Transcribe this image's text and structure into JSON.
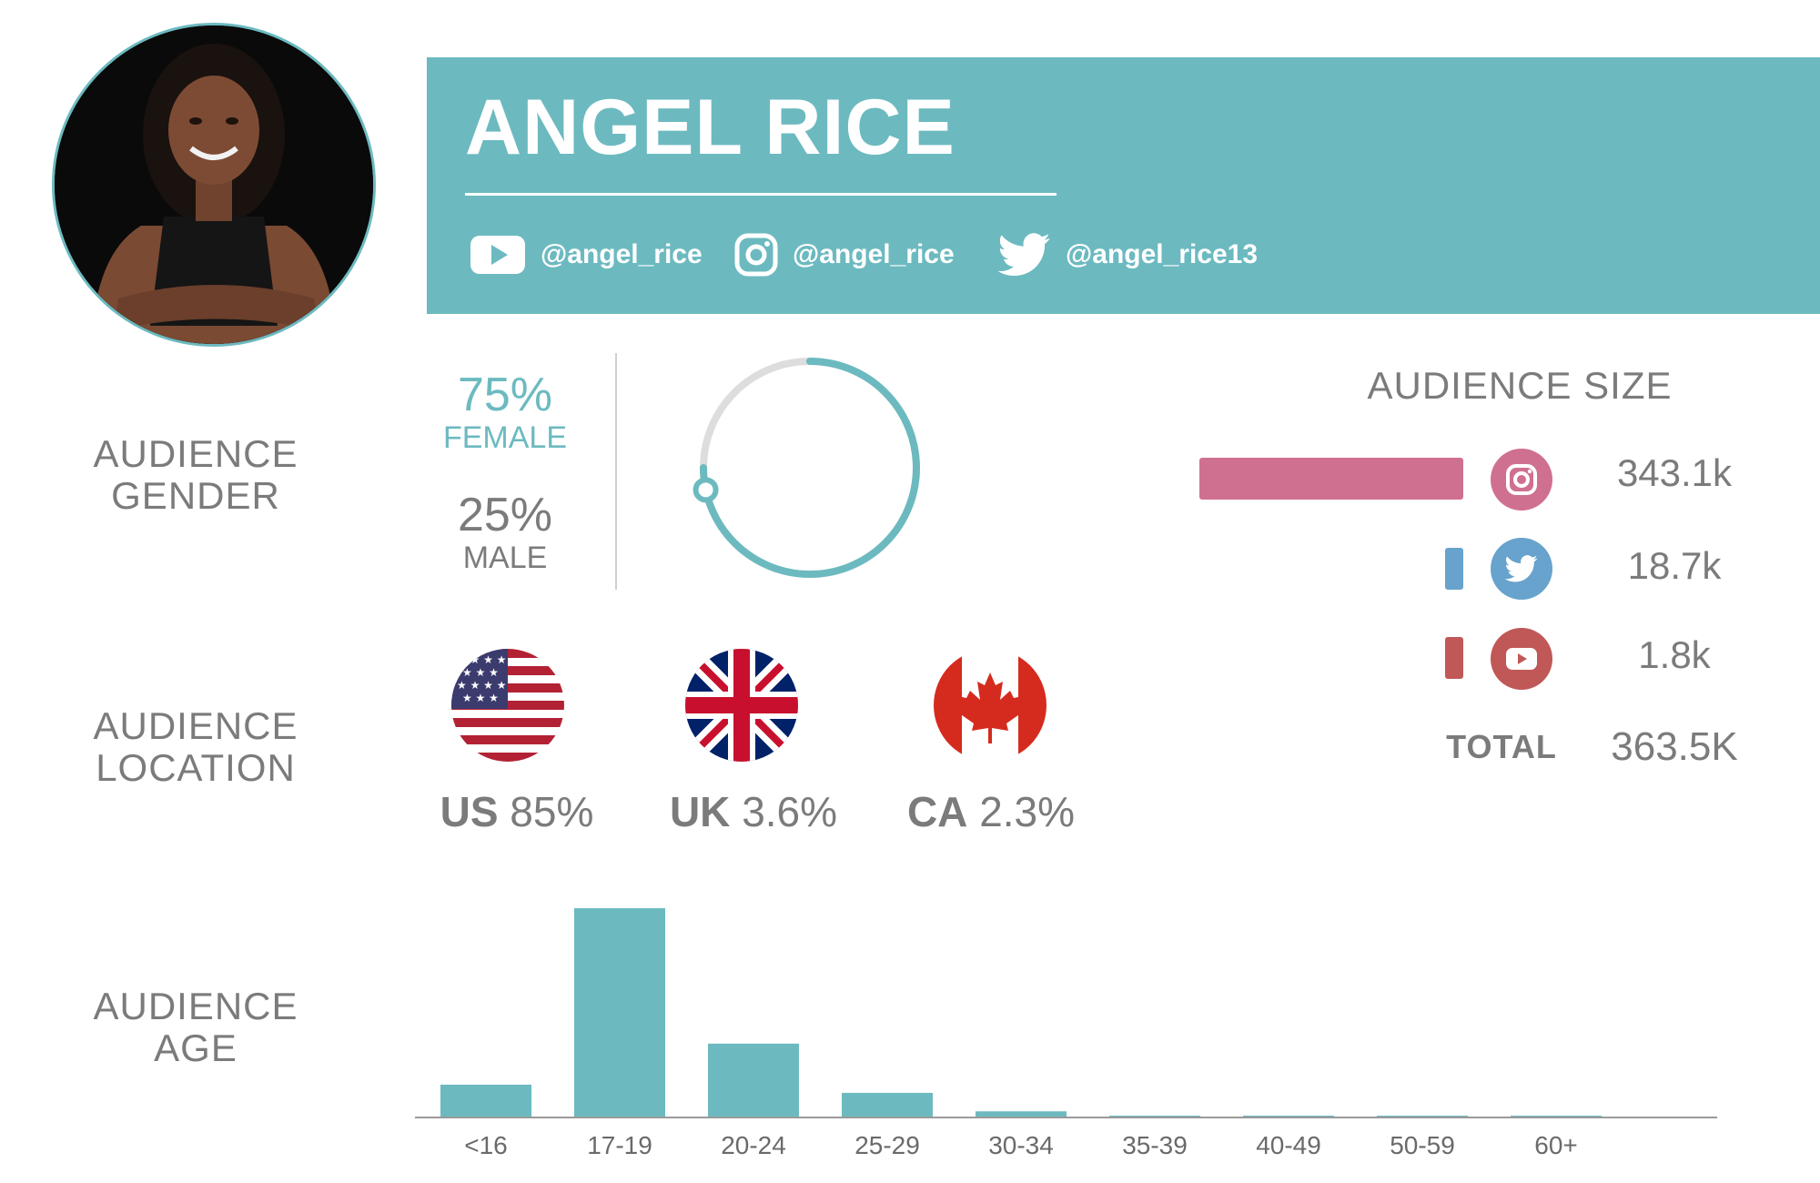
{
  "profile": {
    "name": "ANGEL RICE",
    "handles": [
      {
        "platform": "youtube",
        "icon": "youtube-icon",
        "text": "@angel_rice"
      },
      {
        "platform": "instagram",
        "icon": "instagram-icon",
        "text": "@angel_rice"
      },
      {
        "platform": "twitter",
        "icon": "twitter-icon",
        "text": "@angel_rice13"
      }
    ]
  },
  "gender": {
    "label_line1": "AUDIENCE",
    "label_line2": "GENDER",
    "female": {
      "value": "75%",
      "label": "FEMALE",
      "fraction": 0.75
    },
    "male": {
      "value": "25%",
      "label": "MALE"
    }
  },
  "location": {
    "label_line1": "AUDIENCE",
    "label_line2": "LOCATION",
    "countries": [
      {
        "code": "US",
        "pct": "85%",
        "flag": "us-flag-icon"
      },
      {
        "code": "UK",
        "pct": "3.6%",
        "flag": "uk-flag-icon"
      },
      {
        "code": "CA",
        "pct": "2.3%",
        "flag": "canada-flag-icon"
      }
    ]
  },
  "audience_size": {
    "title": "AUDIENCE SIZE",
    "platforms": [
      {
        "platform": "instagram",
        "icon": "instagram-icon",
        "value": "343.1k",
        "number": 343.1,
        "color": "#d07090"
      },
      {
        "platform": "twitter",
        "icon": "twitter-icon",
        "value": "18.7k",
        "number": 18.7,
        "color": "#67a3cc"
      },
      {
        "platform": "youtube",
        "icon": "youtube-icon",
        "value": "1.8k",
        "number": 1.8,
        "color": "#c05858"
      }
    ],
    "total_label": "TOTAL",
    "total_value": "363.5K"
  },
  "age": {
    "label_line1": "AUDIENCE",
    "label_line2": "AGE"
  },
  "colors": {
    "teal": "#6cbac0",
    "gray_text": "#7b7b7b"
  },
  "chart_data": {
    "type": "bar",
    "categories": [
      "<16",
      "17-19",
      "20-24",
      "25-29",
      "30-34",
      "35-39",
      "40-49",
      "50-59",
      "60+"
    ],
    "values": [
      8,
      51,
      18,
      6,
      1.5,
      0.3,
      0.2,
      0.2,
      0.2
    ],
    "title": "",
    "xlabel": "",
    "ylabel": "",
    "ylim": [
      0,
      55
    ],
    "grid": false,
    "color": "#6cbac0"
  }
}
